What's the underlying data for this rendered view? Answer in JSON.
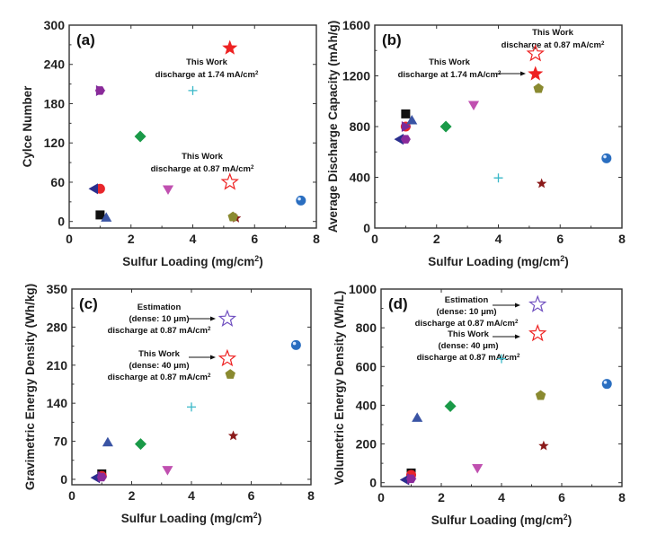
{
  "chart_data": [
    {
      "panel": "(a)",
      "type": "scatter",
      "title": "",
      "xlabel": "Sulfur Loading (mg/cm²)",
      "ylabel": "Cylce Number",
      "xlim": [
        0,
        8
      ],
      "ylim": [
        -10,
        300
      ],
      "xticks": [
        0,
        2,
        4,
        6,
        8
      ],
      "yticks": [
        0,
        60,
        120,
        180,
        240,
        300
      ],
      "grid": false,
      "points": [
        {
          "marker": "square",
          "color": "#111111",
          "x": 1.0,
          "y": 10
        },
        {
          "marker": "circle",
          "color": "#e8262b",
          "x": 1.0,
          "y": 50
        },
        {
          "marker": "triangle-up",
          "color": "#3a54a4",
          "x": 1.2,
          "y": 6
        },
        {
          "marker": "triangle-down",
          "color": "#c050b0",
          "x": 3.2,
          "y": 49
        },
        {
          "marker": "diamond",
          "color": "#1a9a48",
          "x": 2.3,
          "y": 130
        },
        {
          "marker": "triangle-left",
          "color": "#2b2f8e",
          "x": 0.8,
          "y": 50
        },
        {
          "marker": "triangle-right",
          "color": "#7a2a9a",
          "x": 1.0,
          "y": 200
        },
        {
          "marker": "hexagon",
          "color": "#8a2a9a",
          "x": 1.0,
          "y": 200
        },
        {
          "marker": "star",
          "color": "#8b1a1a",
          "x": 5.4,
          "y": 5
        },
        {
          "marker": "pentagon",
          "color": "#8a8a30",
          "x": 5.3,
          "y": 7
        },
        {
          "marker": "plus",
          "color": "#3ab8c8",
          "x": 4.0,
          "y": 200
        },
        {
          "marker": "sphere",
          "color": "#2a6ec0",
          "x": 7.5,
          "y": 32
        },
        {
          "marker": "star-filled",
          "color": "#ee2222",
          "x": 5.2,
          "y": 265
        },
        {
          "marker": "star-open",
          "color": "#ee2222",
          "x": 5.2,
          "y": 60
        }
      ],
      "annotations": [
        {
          "lines": [
            "This Work",
            "discharge at 1.74 mA/cm²"
          ]
        },
        {
          "lines": [
            "This Work",
            "discharge at 0.87 mA/cm²"
          ]
        }
      ]
    },
    {
      "panel": "(b)",
      "type": "scatter",
      "title": "",
      "xlabel": "Sulfur Loading (mg/cm²)",
      "ylabel": "Average Discharge Capacity (mAh/g)",
      "xlim": [
        0,
        8
      ],
      "ylim": [
        0,
        1600
      ],
      "xticks": [
        0,
        2,
        4,
        6,
        8
      ],
      "yticks": [
        0,
        400,
        800,
        1200,
        1600
      ],
      "grid": false,
      "points": [
        {
          "marker": "square",
          "color": "#111111",
          "x": 1.0,
          "y": 900
        },
        {
          "marker": "circle",
          "color": "#e8262b",
          "x": 1.0,
          "y": 800
        },
        {
          "marker": "triangle-up",
          "color": "#3a54a4",
          "x": 1.2,
          "y": 850
        },
        {
          "marker": "triangle-down",
          "color": "#c050b0",
          "x": 3.2,
          "y": 970
        },
        {
          "marker": "diamond",
          "color": "#1a9a48",
          "x": 2.3,
          "y": 800
        },
        {
          "marker": "triangle-left",
          "color": "#2b2f8e",
          "x": 0.8,
          "y": 700
        },
        {
          "marker": "triangle-right",
          "color": "#7a2a9a",
          "x": 1.0,
          "y": 800
        },
        {
          "marker": "hexagon",
          "color": "#8a2a9a",
          "x": 1.0,
          "y": 700
        },
        {
          "marker": "star",
          "color": "#8b1a1a",
          "x": 5.4,
          "y": 350
        },
        {
          "marker": "pentagon",
          "color": "#8a8a30",
          "x": 5.3,
          "y": 1100
        },
        {
          "marker": "plus",
          "color": "#3ab8c8",
          "x": 4.0,
          "y": 395
        },
        {
          "marker": "sphere",
          "color": "#2a6ec0",
          "x": 7.5,
          "y": 550
        },
        {
          "marker": "star-filled",
          "color": "#ee2222",
          "x": 5.2,
          "y": 1215
        },
        {
          "marker": "star-open",
          "color": "#ee2222",
          "x": 5.2,
          "y": 1375
        }
      ],
      "annotations": [
        {
          "lines": [
            "This Work",
            "discharge at 0.87 mA/cm²"
          ]
        },
        {
          "lines": [
            "This Work",
            "discharge at 1.74 mA/cm²"
          ],
          "arrow": true
        }
      ]
    },
    {
      "panel": "(c)",
      "type": "scatter",
      "title": "",
      "xlabel": "Sulfur Loading (mg/cm²)",
      "ylabel": "Gravimetric Energy Density (Wh/kg)",
      "xlim": [
        0,
        8
      ],
      "ylim": [
        -10,
        350
      ],
      "xticks": [
        0,
        2,
        4,
        6,
        8
      ],
      "yticks": [
        0,
        70,
        140,
        210,
        280,
        350
      ],
      "grid": false,
      "points": [
        {
          "marker": "square",
          "color": "#111111",
          "x": 1.0,
          "y": 10
        },
        {
          "marker": "circle",
          "color": "#e8262b",
          "x": 1.0,
          "y": 6
        },
        {
          "marker": "triangle-up",
          "color": "#3a54a4",
          "x": 1.2,
          "y": 68
        },
        {
          "marker": "triangle-down",
          "color": "#c050b0",
          "x": 3.2,
          "y": 17
        },
        {
          "marker": "diamond",
          "color": "#1a9a48",
          "x": 2.3,
          "y": 65
        },
        {
          "marker": "triangle-left",
          "color": "#2b2f8e",
          "x": 0.8,
          "y": 3
        },
        {
          "marker": "triangle-right",
          "color": "#7a2a9a",
          "x": 1.0,
          "y": 5
        },
        {
          "marker": "hexagon",
          "color": "#8a2a9a",
          "x": 1.0,
          "y": 4
        },
        {
          "marker": "star",
          "color": "#8b1a1a",
          "x": 5.4,
          "y": 80
        },
        {
          "marker": "pentagon",
          "color": "#8a8a30",
          "x": 5.3,
          "y": 193
        },
        {
          "marker": "plus",
          "color": "#3ab8c8",
          "x": 4.0,
          "y": 133
        },
        {
          "marker": "sphere",
          "color": "#2a6ec0",
          "x": 7.5,
          "y": 247
        },
        {
          "marker": "star-open",
          "color": "#7050c0",
          "x": 5.2,
          "y": 295
        },
        {
          "marker": "star-open",
          "color": "#ee2222",
          "x": 5.2,
          "y": 222
        }
      ],
      "annotations": [
        {
          "lines": [
            "Estimation",
            "(dense: 10 μm)",
            "discharge at 0.87 mA/cm²"
          ],
          "arrow": true
        },
        {
          "lines": [
            "This Work",
            "(dense: 40 μm)",
            "discharge at 0.87 mA/cm²"
          ],
          "arrow": true
        }
      ]
    },
    {
      "panel": "(d)",
      "type": "scatter",
      "title": "",
      "xlabel": "Sulfur Loading (mg/cm²)",
      "ylabel": "Volumetric Energy Density (Wh/L)",
      "xlim": [
        0,
        8
      ],
      "ylim": [
        -20,
        1000
      ],
      "xticks": [
        0,
        2,
        4,
        6,
        8
      ],
      "yticks": [
        0,
        200,
        400,
        600,
        800,
        1000
      ],
      "grid": false,
      "points": [
        {
          "marker": "square",
          "color": "#111111",
          "x": 1.0,
          "y": 50
        },
        {
          "marker": "circle",
          "color": "#e8262b",
          "x": 1.0,
          "y": 40
        },
        {
          "marker": "triangle-up",
          "color": "#3a54a4",
          "x": 1.2,
          "y": 335
        },
        {
          "marker": "triangle-down",
          "color": "#c050b0",
          "x": 3.2,
          "y": 75
        },
        {
          "marker": "diamond",
          "color": "#1a9a48",
          "x": 2.3,
          "y": 395
        },
        {
          "marker": "triangle-left",
          "color": "#2b2f8e",
          "x": 0.8,
          "y": 15
        },
        {
          "marker": "triangle-right",
          "color": "#7a2a9a",
          "x": 1.0,
          "y": 20
        },
        {
          "marker": "hexagon",
          "color": "#8a2a9a",
          "x": 1.0,
          "y": 20
        },
        {
          "marker": "star",
          "color": "#8b1a1a",
          "x": 5.4,
          "y": 190
        },
        {
          "marker": "pentagon",
          "color": "#8a8a30",
          "x": 5.3,
          "y": 450
        },
        {
          "marker": "plus",
          "color": "#3ab8c8",
          "x": 4.0,
          "y": 640
        },
        {
          "marker": "sphere",
          "color": "#2a6ec0",
          "x": 7.5,
          "y": 510
        },
        {
          "marker": "star-open",
          "color": "#7050c0",
          "x": 5.2,
          "y": 920
        },
        {
          "marker": "star-open",
          "color": "#ee2222",
          "x": 5.2,
          "y": 770
        }
      ],
      "annotations": [
        {
          "lines": [
            "Estimation",
            "(dense: 10 μm)",
            "discharge at 0.87 mA/cm²"
          ],
          "arrow": true
        },
        {
          "lines": [
            "This Work",
            "(dense: 40 μm)",
            "discharge at 0.87 mA/cm²"
          ],
          "arrow": true
        }
      ]
    }
  ]
}
